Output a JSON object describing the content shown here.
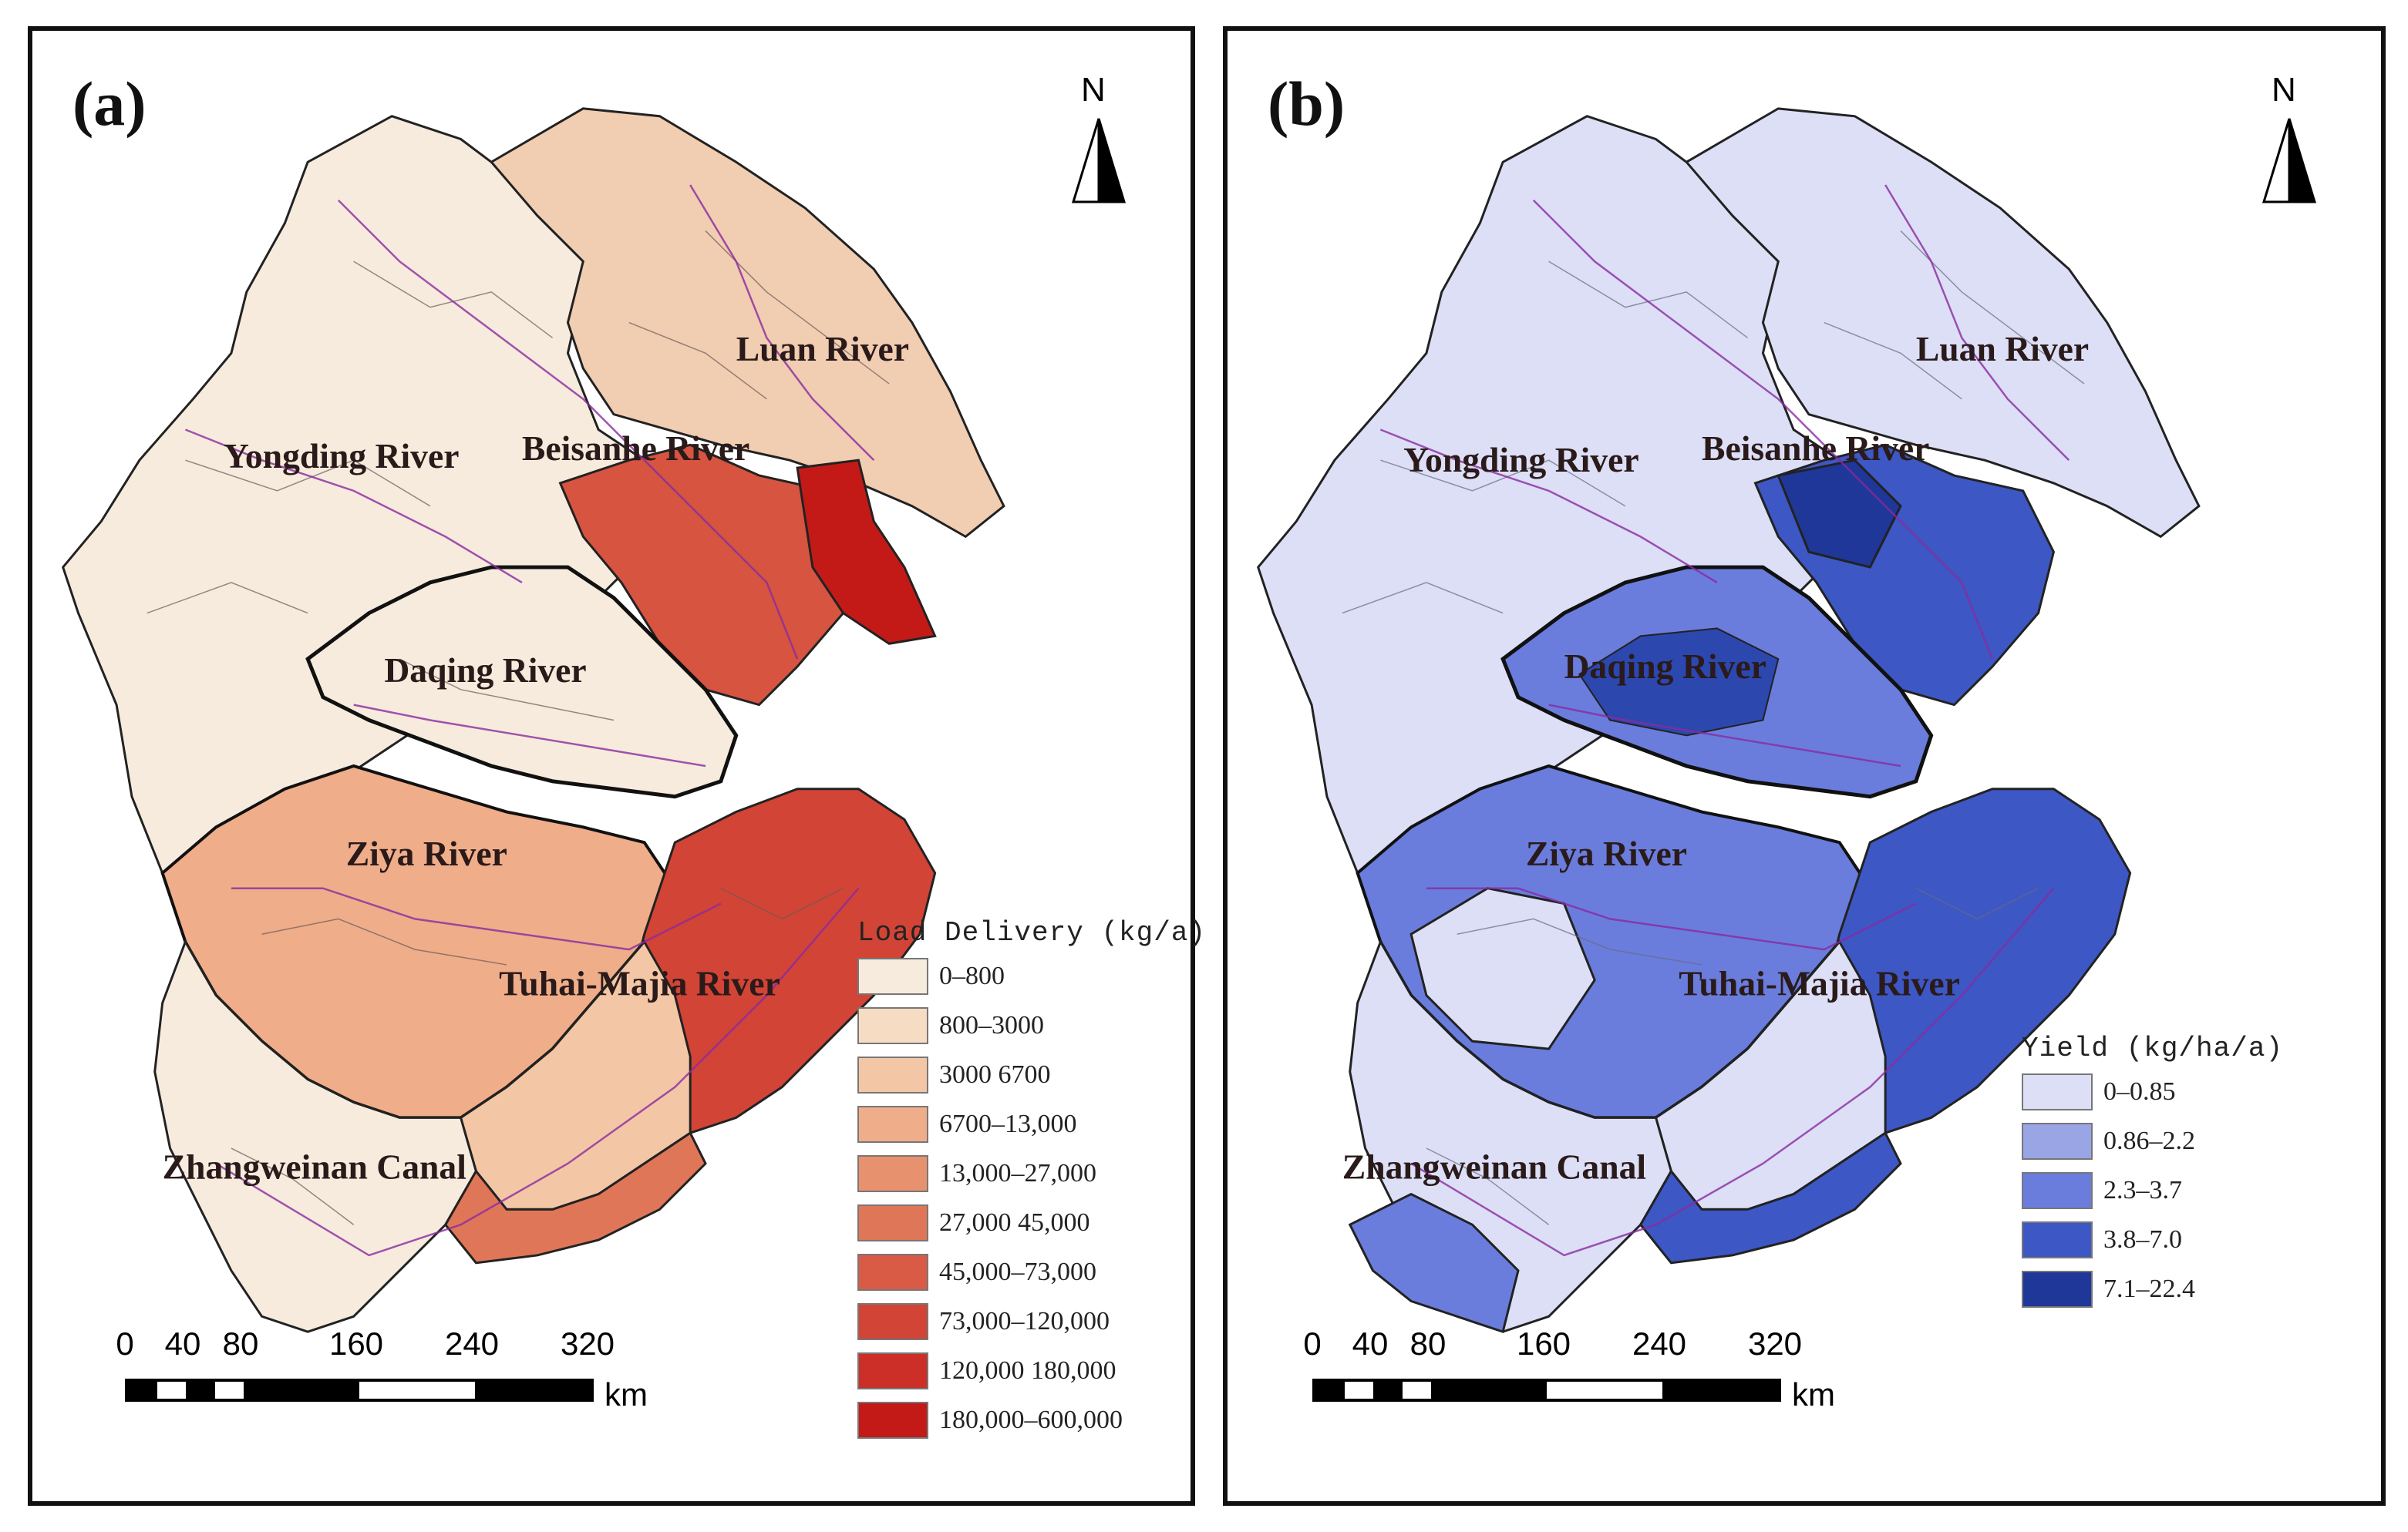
{
  "panels": [
    {
      "label": "(a)",
      "north": "N",
      "rivers": [
        "Luan River",
        "Beisanhe River",
        "Yongding River",
        "Daqing River",
        "Ziya River",
        "Tuhai-Majia River",
        "Zhangweinan Canal"
      ],
      "legend": {
        "title": "Load Delivery (kg/a)",
        "items": [
          {
            "label": "0–800",
            "color": "#f7ebdd"
          },
          {
            "label": "800–3000",
            "color": "#f7dcc4"
          },
          {
            "label": "3000 6700",
            "color": "#f3c6a6"
          },
          {
            "label": "6700–13,000",
            "color": "#efad8a"
          },
          {
            "label": "13,000–27,000",
            "color": "#e8916f"
          },
          {
            "label": "27,000 45,000",
            "color": "#e07658"
          },
          {
            "label": "45,000–73,000",
            "color": "#d95b46"
          },
          {
            "label": "73,000–120,000",
            "color": "#d24436"
          },
          {
            "label": "120,000 180,000",
            "color": "#cc2f27"
          },
          {
            "label": "180,000–600,000",
            "color": "#c41a17"
          }
        ]
      }
    },
    {
      "label": "(b)",
      "north": "N",
      "rivers": [
        "Luan River",
        "Beisanhe River",
        "Yongding River",
        "Daqing River",
        "Ziya River",
        "Tuhai-Majia River",
        "Zhangweinan Canal"
      ],
      "legend": {
        "title": "Yield (kg/ha/a)",
        "items": [
          {
            "label": "0–0.85",
            "color": "#dcdff6"
          },
          {
            "label": "0.86–2.2",
            "color": "#9aa5e6"
          },
          {
            "label": "2.3–3.7",
            "color": "#6a7ddc"
          },
          {
            "label": "3.8–7.0",
            "color": "#3d57c4"
          },
          {
            "label": "7.1–22.4",
            "color": "#1f3798"
          }
        ]
      }
    }
  ],
  "scalebar": {
    "ticks": [
      "0",
      "40",
      "80",
      "160",
      "240",
      "320"
    ],
    "tick_values": [
      0,
      40,
      80,
      160,
      240,
      320
    ],
    "unit": "km"
  }
}
